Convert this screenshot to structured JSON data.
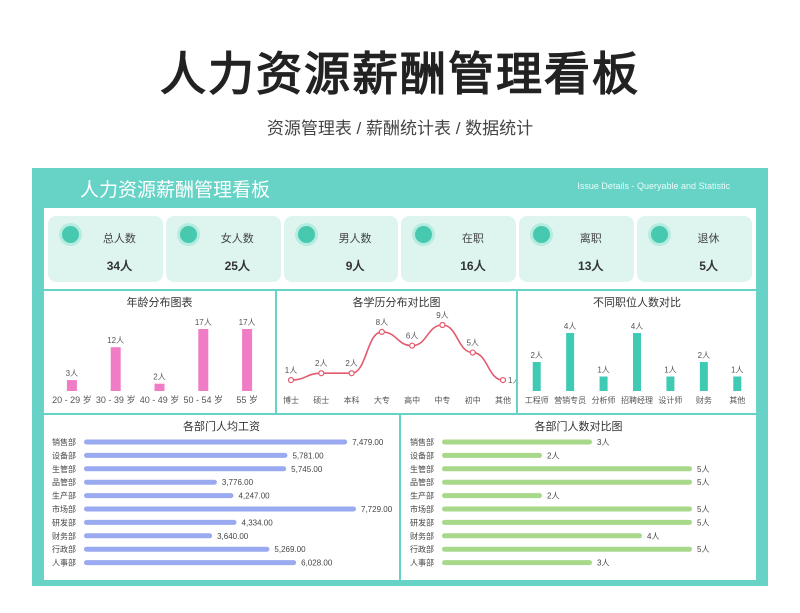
{
  "page": {
    "title": "人力资源薪酬管理看板",
    "subtitle": "资源管理表 / 薪酬统计表 / 数据统计"
  },
  "board": {
    "title": "人力资源薪酬管理看板",
    "subtitle": "Issue Details - Queryable and Statistic"
  },
  "cards": [
    {
      "label": "总人数",
      "value": "34人"
    },
    {
      "label": "女人数",
      "value": "25人"
    },
    {
      "label": "男人数",
      "value": "9人"
    },
    {
      "label": "在职",
      "value": "16人"
    },
    {
      "label": "离职",
      "value": "13人"
    },
    {
      "label": "退休",
      "value": "5人"
    }
  ],
  "colors": {
    "teal": "#66d3c6",
    "pink": "#f07cc6",
    "red_line": "#e35a6e",
    "bar_teal": "#3fcab3",
    "bar_blue": "#9aaaf0",
    "bar_green": "#a8d88a"
  },
  "chart_data": [
    {
      "type": "bar",
      "title": "年龄分布图表",
      "categories": [
        "20 - 29 岁",
        "30 - 39 岁",
        "40 - 49 岁",
        "50 - 54 岁",
        "55 岁"
      ],
      "values": [
        3,
        12,
        2,
        17,
        17
      ],
      "labels": [
        "3人",
        "12人",
        "2人",
        "17人",
        "17人"
      ],
      "ylim": [
        0,
        17
      ]
    },
    {
      "type": "line",
      "title": "各学历分布对比图",
      "categories": [
        "博士",
        "硕士",
        "本科",
        "大专",
        "高中",
        "中专",
        "初中",
        "其他"
      ],
      "values": [
        1,
        2,
        2,
        8,
        6,
        9,
        5,
        1
      ],
      "labels": [
        "1人",
        "2人",
        "2人",
        "8人",
        "6人",
        "9人",
        "5人",
        "1人"
      ],
      "ylim": [
        0,
        9
      ]
    },
    {
      "type": "bar",
      "title": "不同职位人数对比",
      "categories": [
        "工程师",
        "营销专员",
        "分析师",
        "招聘经理",
        "设计师",
        "财务",
        "其他"
      ],
      "values": [
        2,
        4,
        1,
        4,
        1,
        2,
        1
      ],
      "labels": [
        "2人",
        "4人",
        "1人",
        "4人",
        "1人",
        "2人",
        "1人"
      ],
      "ylim": [
        0,
        4
      ]
    },
    {
      "type": "bar",
      "orientation": "horizontal",
      "title": "各部门人均工资",
      "categories": [
        "销售部",
        "设备部",
        "生管部",
        "品管部",
        "生产部",
        "市场部",
        "研发部",
        "财务部",
        "行政部",
        "人事部"
      ],
      "values": [
        7479,
        5781,
        5745,
        3776,
        4247,
        7729,
        4334,
        3640,
        5269,
        6028
      ],
      "labels": [
        "7,479.00",
        "5,781.00",
        "5,745.00",
        "3,776.00",
        "4,247.00",
        "7,729.00",
        "4,334.00",
        "3,640.00",
        "5,269.00",
        "6,028.00"
      ],
      "xlim": [
        0,
        7729
      ]
    },
    {
      "type": "bar",
      "orientation": "horizontal",
      "title": "各部门人数对比图",
      "categories": [
        "销售部",
        "设备部",
        "生管部",
        "品管部",
        "生产部",
        "市场部",
        "研发部",
        "财务部",
        "行政部",
        "人事部"
      ],
      "values": [
        3,
        2,
        5,
        5,
        2,
        5,
        5,
        4,
        5,
        3
      ],
      "labels": [
        "3人",
        "2人",
        "5人",
        "5人",
        "2人",
        "5人",
        "5人",
        "4人",
        "5人",
        "3人"
      ],
      "xlim": [
        0,
        5
      ]
    }
  ]
}
